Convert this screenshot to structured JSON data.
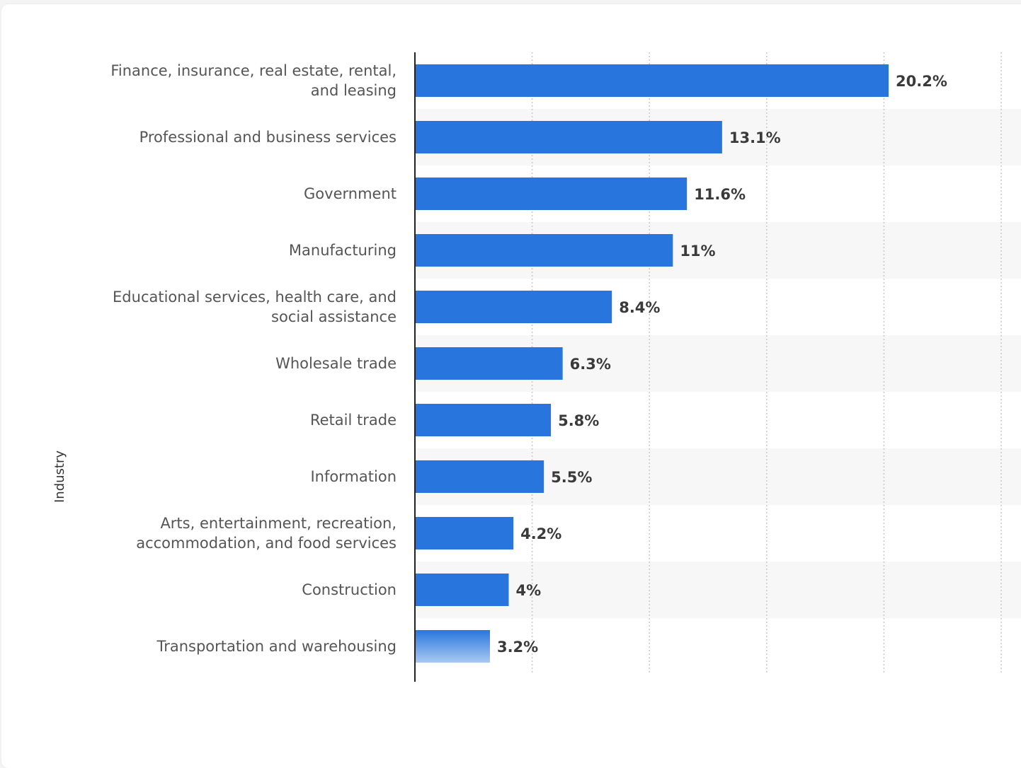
{
  "chart_data": {
    "type": "bar",
    "orientation": "horizontal",
    "title": "",
    "xlabel": "",
    "ylabel": "Industry",
    "xlim": [
      0,
      25
    ],
    "grid": true,
    "categories": [
      [
        "Finance, insurance, real estate, rental,",
        "and leasing"
      ],
      [
        "Professional and business services"
      ],
      [
        "Government"
      ],
      [
        "Manufacturing"
      ],
      [
        "Educational services, health care, and",
        "social assistance"
      ],
      [
        "Wholesale trade"
      ],
      [
        "Retail trade"
      ],
      [
        "Information"
      ],
      [
        "Arts, entertainment, recreation,",
        "accommodation, and food services"
      ],
      [
        "Construction"
      ],
      [
        "Transportation and warehousing"
      ]
    ],
    "values": [
      20.2,
      13.1,
      11.6,
      11,
      8.4,
      6.3,
      5.8,
      5.5,
      4.2,
      4,
      3.2
    ],
    "value_labels": [
      "20.2%",
      "13.1%",
      "11.6%",
      "11%",
      "8.4%",
      "6.3%",
      "5.8%",
      "5.5%",
      "4.2%",
      "4%",
      "3.2%"
    ],
    "colors": {
      "bar": "#2876dd",
      "stripe": "#f7f7f7",
      "grid": "#c8c8c8",
      "axis": "#222222"
    }
  }
}
